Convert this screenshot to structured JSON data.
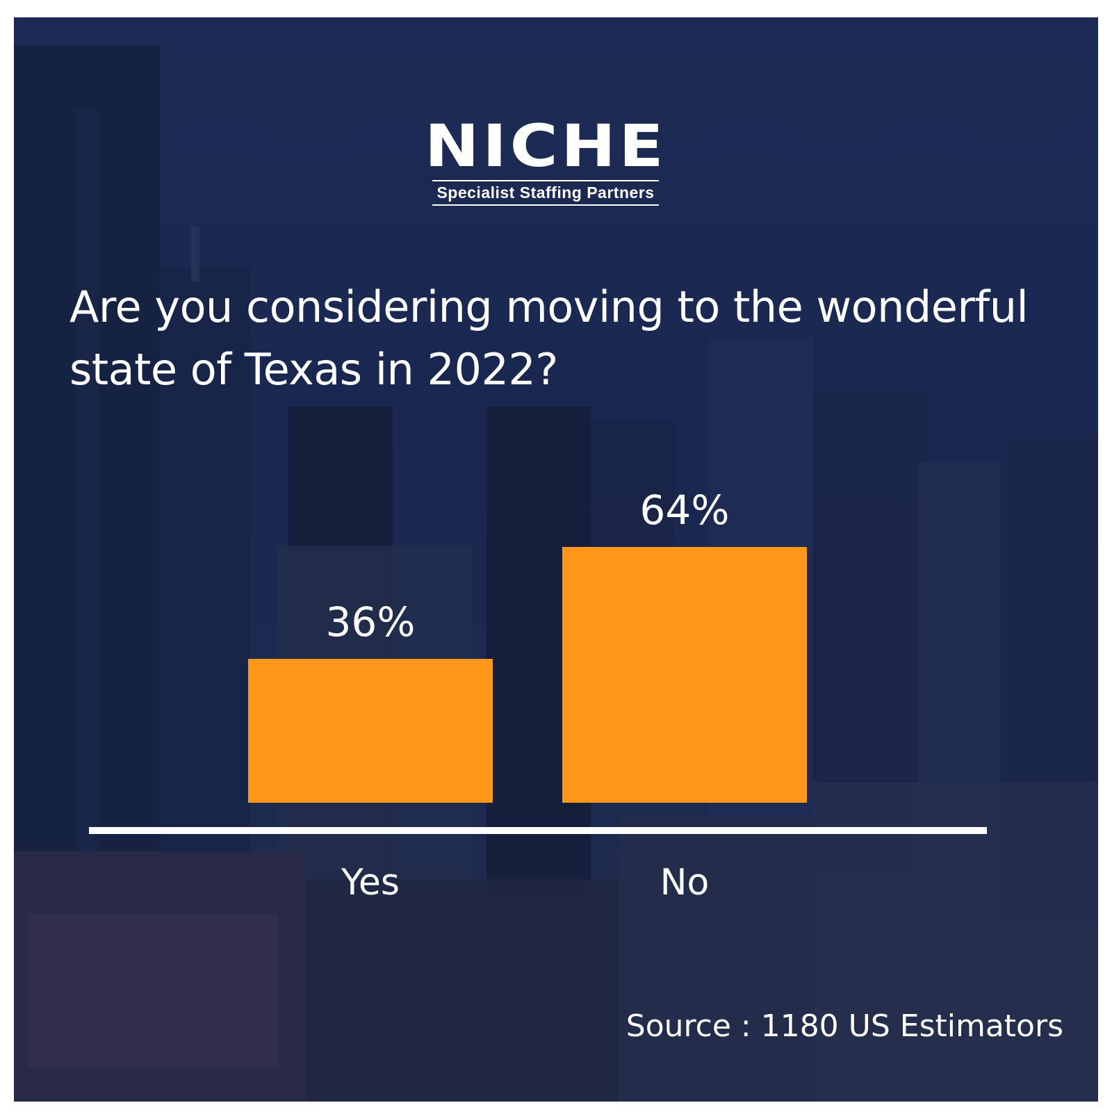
{
  "brand": {
    "name": "NICHE",
    "tagline": "Specialist Staffing Partners"
  },
  "question": "Are you considering moving to the wonderful state of Texas in 2022?",
  "source": "Source : 1180 US Estimators",
  "colors": {
    "background": "#1c2a55",
    "bar": "#ff971b",
    "text": "#ffffff",
    "axis": "#ffffff"
  },
  "chart_data": {
    "type": "bar",
    "title": "",
    "categories": [
      "Yes",
      "No"
    ],
    "values": [
      36,
      64
    ],
    "data_labels": [
      "36%",
      "64%"
    ],
    "xlabel": "",
    "ylabel": "",
    "grid": false,
    "legend": "none"
  }
}
